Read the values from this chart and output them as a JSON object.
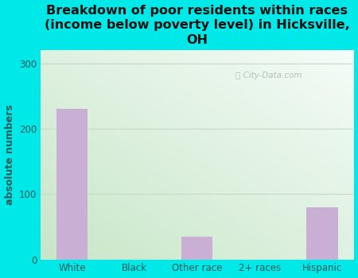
{
  "categories": [
    "White",
    "Black",
    "Other race",
    "2+ races",
    "Hispanic"
  ],
  "values": [
    230,
    0,
    35,
    0,
    80
  ],
  "bar_color": "#c9afd4",
  "background_color": "#00e8e8",
  "title": "Breakdown of poor residents within races\n(income below poverty level) in Hicksville,\nOH",
  "title_color": "#111111",
  "title_fontsize": 11.5,
  "ylabel": "absolute numbers",
  "ylabel_color": "#2a5a5a",
  "ylabel_fontsize": 9,
  "tick_color": "#2a5a5a",
  "tick_fontsize": 8.5,
  "ylim": [
    0,
    320
  ],
  "yticks": [
    0,
    100,
    200,
    300
  ],
  "watermark": "City-Data.com",
  "watermark_color": "#a8b8b0",
  "grid_color": "#c8d8c8",
  "bar_width": 0.5,
  "plot_bg_top": "#f5faf8",
  "plot_bg_bottom": "#d8ecd8"
}
